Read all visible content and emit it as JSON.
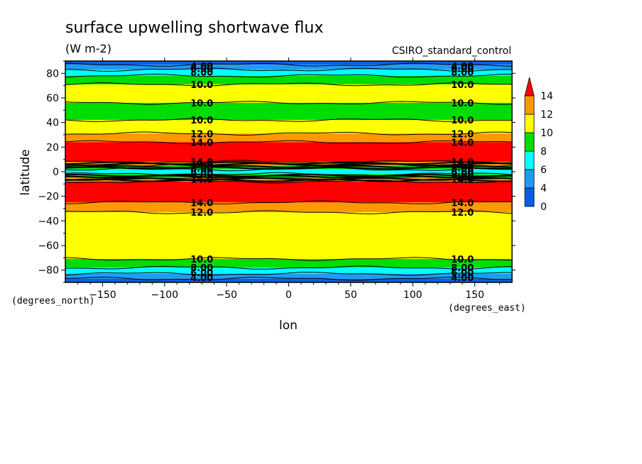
{
  "chart_data": {
    "type": "heatmap",
    "title": "surface upwelling shortwave flux",
    "units": "(W m-2)",
    "source_label": "CSIRO_standard_control",
    "xlabel": "lon",
    "ylabel": "latitude",
    "x_unit_label": "(degrees_east)",
    "y_unit_label": "(degrees_north)",
    "xlim": [
      -180,
      180
    ],
    "ylim": [
      -90,
      90
    ],
    "x_ticks": [
      -150,
      -100,
      -50,
      0,
      50,
      100,
      150
    ],
    "x_tick_labels": [
      "−150",
      "−100",
      "−50",
      "0",
      "50",
      "100",
      "150"
    ],
    "y_ticks": [
      -80,
      -60,
      -40,
      -20,
      0,
      20,
      40,
      60,
      80
    ],
    "y_tick_labels": [
      "−80",
      "−60",
      "−40",
      "−20",
      "0",
      "20",
      "40",
      "60",
      "80"
    ],
    "colorbar": {
      "levels": [
        0,
        2,
        4,
        6,
        8,
        10,
        12,
        14
      ],
      "tick_labels": [
        "0",
        "4",
        "6",
        "8",
        "10",
        "12",
        "14"
      ],
      "tick_values": [
        0,
        4,
        6,
        8,
        10,
        12,
        14
      ],
      "colors": [
        "#0a5ee6",
        "#1f9cf0",
        "#00ffff",
        "#00dd00",
        "#ffff00",
        "#ff9900",
        "#ff0000"
      ],
      "extend": "max"
    },
    "latitude_bands": [
      {
        "lat_from": 90,
        "lat_to": 87,
        "value": 3
      },
      {
        "lat_from": 87,
        "lat_to": 83,
        "value": 5
      },
      {
        "lat_from": 83,
        "lat_to": 78,
        "value": 7
      },
      {
        "lat_from": 78,
        "lat_to": 71,
        "value": 9
      },
      {
        "lat_from": 71,
        "lat_to": 56,
        "value": 11
      },
      {
        "lat_from": 56,
        "lat_to": 42,
        "value": 9
      },
      {
        "lat_from": 42,
        "lat_to": 31,
        "value": 11
      },
      {
        "lat_from": 31,
        "lat_to": 24,
        "value": 13
      },
      {
        "lat_from": 24,
        "lat_to": 8,
        "value": 15
      },
      {
        "lat_from": 8,
        "lat_to": 5,
        "value": 13
      },
      {
        "lat_from": 5,
        "lat_to": 2,
        "value": 9
      },
      {
        "lat_from": 2,
        "lat_to": -2,
        "value": 7
      },
      {
        "lat_from": -2,
        "lat_to": -5,
        "value": 9
      },
      {
        "lat_from": -5,
        "lat_to": -8,
        "value": 13
      },
      {
        "lat_from": -8,
        "lat_to": -25,
        "value": 15
      },
      {
        "lat_from": -25,
        "lat_to": -33,
        "value": 13
      },
      {
        "lat_from": -33,
        "lat_to": -71,
        "value": 11
      },
      {
        "lat_from": -71,
        "lat_to": -78,
        "value": 9
      },
      {
        "lat_from": -78,
        "lat_to": -83,
        "value": 7
      },
      {
        "lat_from": -83,
        "lat_to": -87,
        "value": 5
      },
      {
        "lat_from": -87,
        "lat_to": -90,
        "value": 3
      }
    ],
    "contour_labels": [
      {
        "text": "4.00",
        "lon": -70,
        "lat": 86
      },
      {
        "text": "6.00",
        "lon": -70,
        "lat": 84
      },
      {
        "text": "8.00",
        "lon": -70,
        "lat": 81
      },
      {
        "text": "10.0",
        "lon": -70,
        "lat": 71
      },
      {
        "text": "10.0",
        "lon": -70,
        "lat": 56
      },
      {
        "text": "10.0",
        "lon": -70,
        "lat": 42
      },
      {
        "text": "12.0",
        "lon": -70,
        "lat": 31
      },
      {
        "text": "14.0",
        "lon": -70,
        "lat": 24
      },
      {
        "text": "14.0",
        "lon": -70,
        "lat": 8
      },
      {
        "text": "12.0",
        "lon": -70,
        "lat": 6
      },
      {
        "text": "8.00",
        "lon": -70,
        "lat": 3
      },
      {
        "text": "6.00",
        "lon": -70,
        "lat": 0
      },
      {
        "text": "8.00",
        "lon": -70,
        "lat": -2
      },
      {
        "text": "14.0",
        "lon": -70,
        "lat": -6
      },
      {
        "text": "14.0",
        "lon": -70,
        "lat": -25
      },
      {
        "text": "12.0",
        "lon": -70,
        "lat": -33
      },
      {
        "text": "10.0",
        "lon": -70,
        "lat": -71
      },
      {
        "text": "8.00",
        "lon": -70,
        "lat": -78
      },
      {
        "text": "6.00",
        "lon": -70,
        "lat": -82
      },
      {
        "text": "4.00",
        "lon": -70,
        "lat": -86
      },
      {
        "text": "4.00",
        "lon": 140,
        "lat": 86
      },
      {
        "text": "6.00",
        "lon": 140,
        "lat": 84
      },
      {
        "text": "8.00",
        "lon": 140,
        "lat": 81
      },
      {
        "text": "10.0",
        "lon": 140,
        "lat": 71
      },
      {
        "text": "10.0",
        "lon": 140,
        "lat": 56
      },
      {
        "text": "10.0",
        "lon": 140,
        "lat": 42
      },
      {
        "text": "12.0",
        "lon": 140,
        "lat": 31
      },
      {
        "text": "14.0",
        "lon": 140,
        "lat": 24
      },
      {
        "text": "14.0",
        "lon": 140,
        "lat": 8
      },
      {
        "text": "12.0",
        "lon": 140,
        "lat": 6
      },
      {
        "text": "8.00",
        "lon": 140,
        "lat": 3
      },
      {
        "text": "6.00",
        "lon": 140,
        "lat": 0
      },
      {
        "text": "8.00",
        "lon": 140,
        "lat": -2
      },
      {
        "text": "14.0",
        "lon": 140,
        "lat": -6
      },
      {
        "text": "14.0",
        "lon": 140,
        "lat": -25
      },
      {
        "text": "12.0",
        "lon": 140,
        "lat": -33
      },
      {
        "text": "10.0",
        "lon": 140,
        "lat": -71
      },
      {
        "text": "8.00",
        "lon": 140,
        "lat": -78
      },
      {
        "text": "6.00",
        "lon": 140,
        "lat": -82
      },
      {
        "text": "4.00",
        "lon": 140,
        "lat": -86
      }
    ]
  }
}
